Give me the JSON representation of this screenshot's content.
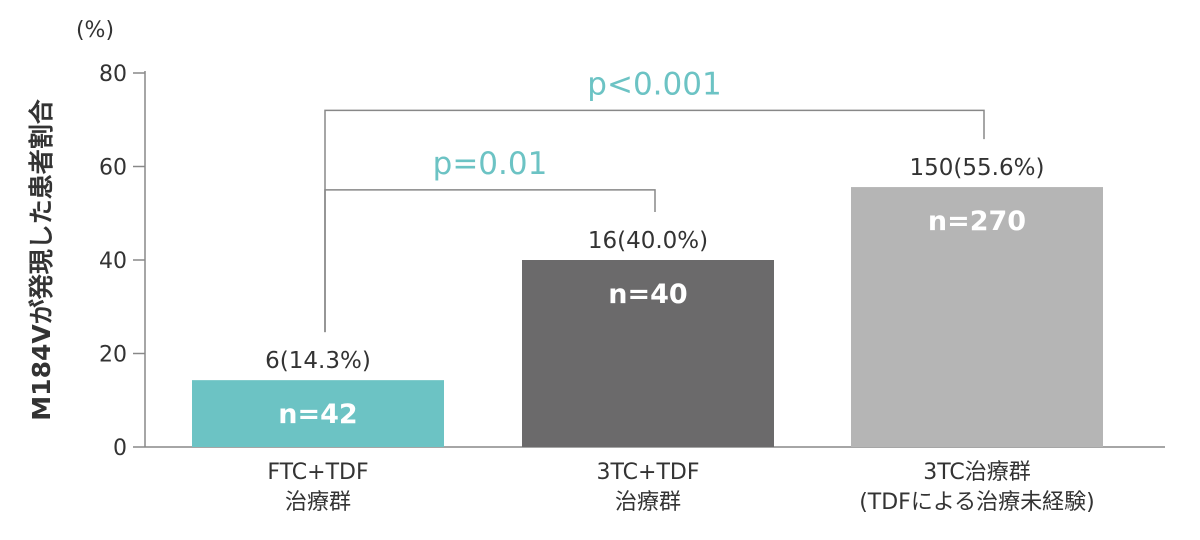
{
  "chart_data": {
    "type": "bar",
    "unit_label": "(%)",
    "ylabel": "M184Vが発現した患者割合",
    "ylim": [
      0,
      80
    ],
    "yticks": [
      0,
      20,
      40,
      60,
      80
    ],
    "categories": [
      [
        "FTC+TDF",
        "治療群"
      ],
      [
        "3TC+TDF",
        "治療群"
      ],
      [
        "3TC治療群",
        "(TDFによる治療未経験)"
      ]
    ],
    "values": [
      14.3,
      40.0,
      55.6
    ],
    "value_labels": [
      "6(14.3%)",
      "16(40.0%)",
      "150(55.6%)"
    ],
    "n_labels": [
      "n=42",
      "n=40",
      "n=270"
    ],
    "colors": [
      "#6cc3c4",
      "#6b6a6b",
      "#b5b5b5"
    ],
    "comparisons": [
      {
        "from": 0,
        "to": 1,
        "label": "p=0.01",
        "y": 55
      },
      {
        "from": 0,
        "to": 2,
        "label": "p<0.001",
        "y": 72
      }
    ],
    "grid": false
  }
}
